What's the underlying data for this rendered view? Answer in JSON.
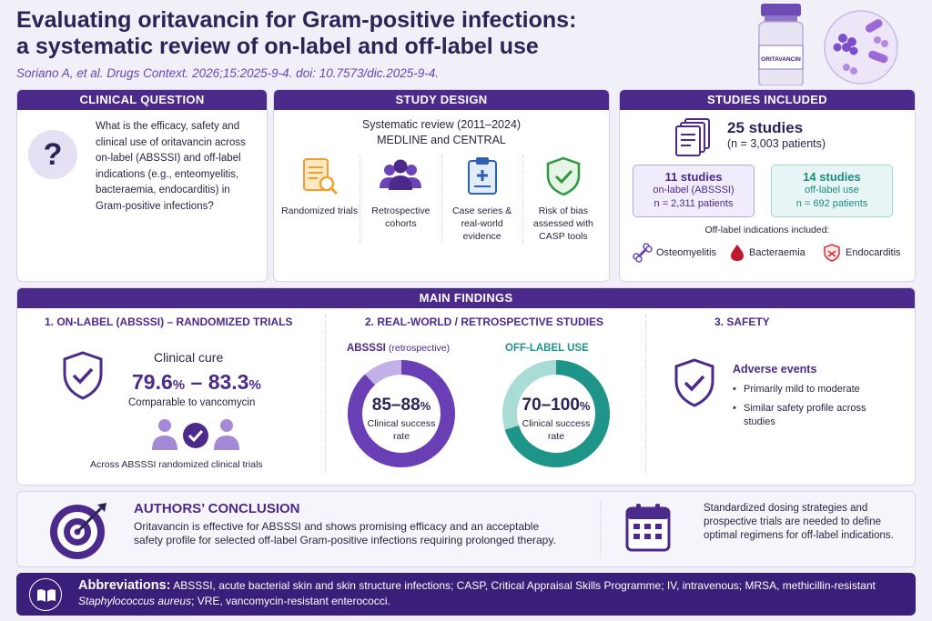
{
  "header": {
    "title_line1": "Evaluating oritavancin for Gram-positive infections:",
    "title_line2": "a systematic review of on-label and off-label use",
    "citation": "Soriano A, et al. Drugs Context. 2026;15:2025-9-4. doi: 10.7573/dic.2025-9-4.",
    "vial_label": "ORITAVANCIN"
  },
  "clinical_question": {
    "heading": "CLINICAL QUESTION",
    "icon": "question-mark-icon",
    "text": "What is the efficacy, safety and clinical use of oritavancin across on-label (ABSSSI) and off-label indications (e.g., enteomyelitis, bacteraemia, endocarditis) in Gram-positive infections?"
  },
  "study_design": {
    "heading": "STUDY DESIGN",
    "line1": "Systematic review (2011–2024)",
    "line2": "MEDLINE and CENTRAL",
    "items": [
      {
        "icon": "document-search-icon",
        "label": "Randomized trials"
      },
      {
        "icon": "group-icon",
        "label": "Retrospective cohorts"
      },
      {
        "icon": "clipboard-icon",
        "label": "Case series & real-world evidence"
      },
      {
        "icon": "shield-check-icon",
        "label": "Risk of bias assessed with CASP tools"
      }
    ]
  },
  "studies_included": {
    "heading": "STUDIES INCLUDED",
    "total": "25 studies",
    "total_patients": "(n = 3,003 patients)",
    "on_label": {
      "count": "11 studies",
      "label": "on-label (ABSSSI)",
      "patients": "n = 2,311 patients"
    },
    "off_label": {
      "count": "14 studies",
      "label": "off-label use",
      "patients": "n = 692 patients"
    },
    "indications_title": "Off-label indications included:",
    "indications": [
      {
        "icon": "bone-icon",
        "label": "Osteomyelitis"
      },
      {
        "icon": "blood-drop-icon",
        "label": "Bacteraemia"
      },
      {
        "icon": "heart-shield-icon",
        "label": "Endocarditis"
      }
    ]
  },
  "main_findings": {
    "heading": "MAIN FINDINGS",
    "col1": {
      "title": "1. ON-LABEL (ABSSSI) – RANDOMIZED TRIALS",
      "metric_label": "Clinical cure",
      "range_low": "79.6",
      "range_high": "83.3",
      "unit": "%",
      "dash": " – ",
      "comparison": "Comparable to vancomycin",
      "footnote": "Across ABSSSI randomized clinical trials"
    },
    "col2": {
      "title": "2. REAL-WORLD / RETROSPECTIVE STUDIES",
      "donut1": {
        "label": "ABSSSI",
        "label_note": "(retrospective)",
        "value": "85–88",
        "unit": "%",
        "sub": "Clinical success rate",
        "fill_fraction": 0.88,
        "color": "#6a3fb5",
        "track": "#c3b0e6"
      },
      "donut2": {
        "label": "OFF-LABEL USE",
        "value": "70–100",
        "unit": "%",
        "sub": "Clinical success rate",
        "fill_fraction": 0.7,
        "color": "#1f9488",
        "track": "#a8dcd5"
      }
    },
    "col3": {
      "title": "3. SAFETY",
      "subtitle": "Adverse events",
      "points": [
        "Primarily mild to moderate",
        "Similar safety profile across studies"
      ]
    }
  },
  "conclusion": {
    "title": "AUTHORS’ CONCLUSION",
    "text": "Oritavancin is effective for ABSSSI and shows promising efficacy and an acceptable safety profile for selected off-label Gram-positive infections requiring prolonged therapy.",
    "right_text": "Standardized dosing strategies and prospective trials are needed to define optimal regimens for off-label indications."
  },
  "abbreviations": {
    "label": "Abbreviations:",
    "text_part1": " ABSSSI, acute bacterial skin and skin structure infections; CASP, Critical Appraisal Skills Programme; IV, intravenous; MRSA, methicillin-resistant ",
    "text_italic": "Staphylococcus aureus",
    "text_part2": "; VRE, vancomycin-resistant enterococci."
  },
  "colors": {
    "primary": "#4b2a8c",
    "teal": "#1f9488",
    "header_bg": "#3a1f7a"
  }
}
